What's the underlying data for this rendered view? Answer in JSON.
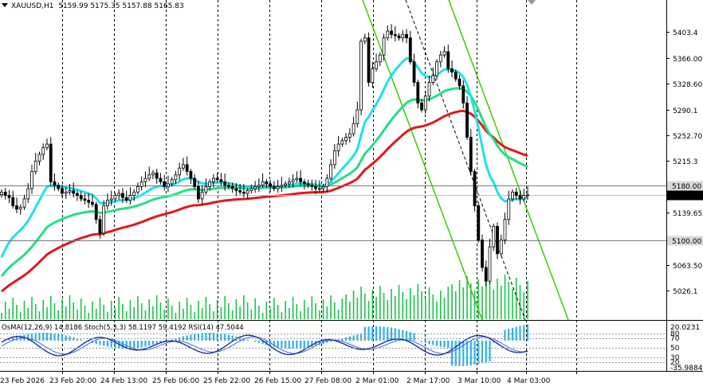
{
  "header": {
    "symbol": "XAUUSD,H1",
    "ohlc": "5159.99 5175.35 5157.88 5165.83"
  },
  "indicator_header": "OsMA(12,26,9) 14.8186  Stoch(5,3,3) 58.1197 59.4192  RSI(14) 47.5044",
  "colors": {
    "ma_fast": "#1fe0ee",
    "ma_mid": "#22e084",
    "ma_slow": "#e3171c",
    "channel": "#3acc00",
    "volume": "#1ec24a",
    "osma": "#2ab3ea",
    "stoch_main": "#1a2f9a",
    "stoch_signal": "#3366ff",
    "candle": "#000000",
    "grid": "#000000"
  },
  "price_axis": {
    "ticks": [
      "5403.4",
      "5366.00",
      "5328.60",
      "5290.1",
      "5252.70",
      "5215.3",
      "5139.65",
      "5063.50",
      "5026.1"
    ],
    "levels": [
      {
        "value": "5180.00",
        "style": "line"
      },
      {
        "value": "5165.83",
        "style": "current"
      },
      {
        "value": "5100.00",
        "style": "line"
      }
    ],
    "min": 4988.0,
    "max": 5434.0
  },
  "indicator_axis": {
    "top_value": "20.0231",
    "ticks": [
      "80",
      "70",
      "50",
      "30",
      "20"
    ],
    "bottom_value": "-35.9884"
  },
  "time_axis": {
    "labels": [
      "23 Feb 2026",
      "23 Feb 20:00",
      "24 Feb 13:00",
      "25 Feb 06:00",
      "25 Feb 22:00",
      "26 Feb 15:00",
      "27 Feb 08:00",
      "2 Mar 01:00",
      "2 Mar 17:00",
      "3 Mar 10:00",
      "4 Mar 03:00"
    ]
  },
  "chart_data": {
    "type": "candlestick",
    "symbol": "XAUUSD",
    "timeframe": "H1",
    "price_range": [
      4988.0,
      5434.0
    ],
    "closes": [
      5170,
      5165,
      5162,
      5150,
      5145,
      5148,
      5160,
      5175,
      5200,
      5215,
      5225,
      5235,
      5240,
      5185,
      5180,
      5175,
      5168,
      5170,
      5172,
      5168,
      5165,
      5160,
      5158,
      5155,
      5152,
      5130,
      5110,
      5150,
      5158,
      5160,
      5165,
      5168,
      5162,
      5158,
      5165,
      5170,
      5178,
      5185,
      5190,
      5195,
      5198,
      5190,
      5185,
      5178,
      5182,
      5188,
      5195,
      5205,
      5210,
      5200,
      5190,
      5178,
      5160,
      5170,
      5178,
      5185,
      5190,
      5188,
      5185,
      5180,
      5178,
      5175,
      5172,
      5170,
      5168,
      5172,
      5175,
      5178,
      5180,
      5185,
      5182,
      5178,
      5175,
      5178,
      5180,
      5182,
      5185,
      5188,
      5190,
      5185,
      5182,
      5180,
      5178,
      5175,
      5175,
      5178,
      5190,
      5210,
      5230,
      5240,
      5245,
      5250,
      5255,
      5270,
      5290,
      5390,
      5395,
      5330,
      5350,
      5360,
      5370,
      5395,
      5405,
      5400,
      5398,
      5395,
      5400,
      5395,
      5360,
      5330,
      5300,
      5290,
      5310,
      5330,
      5340,
      5360,
      5370,
      5375,
      5350,
      5345,
      5335,
      5325,
      5300,
      5250,
      5200,
      5150,
      5100,
      5060,
      5040,
      5090,
      5120,
      5080,
      5100,
      5130,
      5160,
      5170,
      5165,
      5160,
      5165,
      5166
    ],
    "moving_averages": [
      {
        "period_role": "fast",
        "color": "#1fe0ee"
      },
      {
        "period_role": "medium",
        "color": "#22e084"
      },
      {
        "period_role": "slow",
        "color": "#e3171c"
      }
    ]
  }
}
